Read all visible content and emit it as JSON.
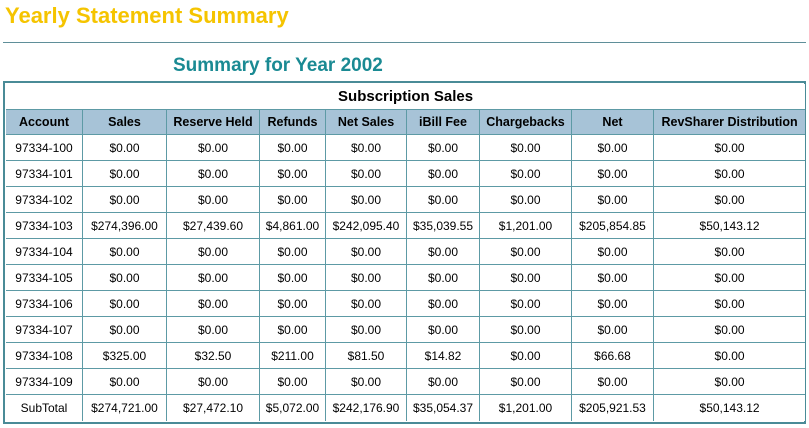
{
  "page": {
    "title": "Yearly Statement Summary",
    "year_heading": "Summary for Year 2002"
  },
  "table": {
    "caption": "Subscription Sales",
    "columns": [
      "Account",
      "Sales",
      "Reserve Held",
      "Refunds",
      "Net Sales",
      "iBill Fee",
      "Chargebacks",
      "Net",
      "RevSharer Distribution"
    ],
    "rows": [
      [
        "97334-100",
        "$0.00",
        "$0.00",
        "$0.00",
        "$0.00",
        "$0.00",
        "$0.00",
        "$0.00",
        "$0.00"
      ],
      [
        "97334-101",
        "$0.00",
        "$0.00",
        "$0.00",
        "$0.00",
        "$0.00",
        "$0.00",
        "$0.00",
        "$0.00"
      ],
      [
        "97334-102",
        "$0.00",
        "$0.00",
        "$0.00",
        "$0.00",
        "$0.00",
        "$0.00",
        "$0.00",
        "$0.00"
      ],
      [
        "97334-103",
        "$274,396.00",
        "$27,439.60",
        "$4,861.00",
        "$242,095.40",
        "$35,039.55",
        "$1,201.00",
        "$205,854.85",
        "$50,143.12"
      ],
      [
        "97334-104",
        "$0.00",
        "$0.00",
        "$0.00",
        "$0.00",
        "$0.00",
        "$0.00",
        "$0.00",
        "$0.00"
      ],
      [
        "97334-105",
        "$0.00",
        "$0.00",
        "$0.00",
        "$0.00",
        "$0.00",
        "$0.00",
        "$0.00",
        "$0.00"
      ],
      [
        "97334-106",
        "$0.00",
        "$0.00",
        "$0.00",
        "$0.00",
        "$0.00",
        "$0.00",
        "$0.00",
        "$0.00"
      ],
      [
        "97334-107",
        "$0.00",
        "$0.00",
        "$0.00",
        "$0.00",
        "$0.00",
        "$0.00",
        "$0.00",
        "$0.00"
      ],
      [
        "97334-108",
        "$325.00",
        "$32.50",
        "$211.00",
        "$81.50",
        "$14.82",
        "$0.00",
        "$66.68",
        "$0.00"
      ],
      [
        "97334-109",
        "$0.00",
        "$0.00",
        "$0.00",
        "$0.00",
        "$0.00",
        "$0.00",
        "$0.00",
        "$0.00"
      ],
      [
        "SubTotal",
        "$274,721.00",
        "$27,472.10",
        "$5,072.00",
        "$242,176.90",
        "$35,054.37",
        "$1,201.00",
        "$205,921.53",
        "$50,143.12"
      ]
    ]
  },
  "colors": {
    "title": "#f5c400",
    "year_heading": "#1a8a93",
    "header_background": "#a7c3d7",
    "border": "#4a8b97"
  }
}
